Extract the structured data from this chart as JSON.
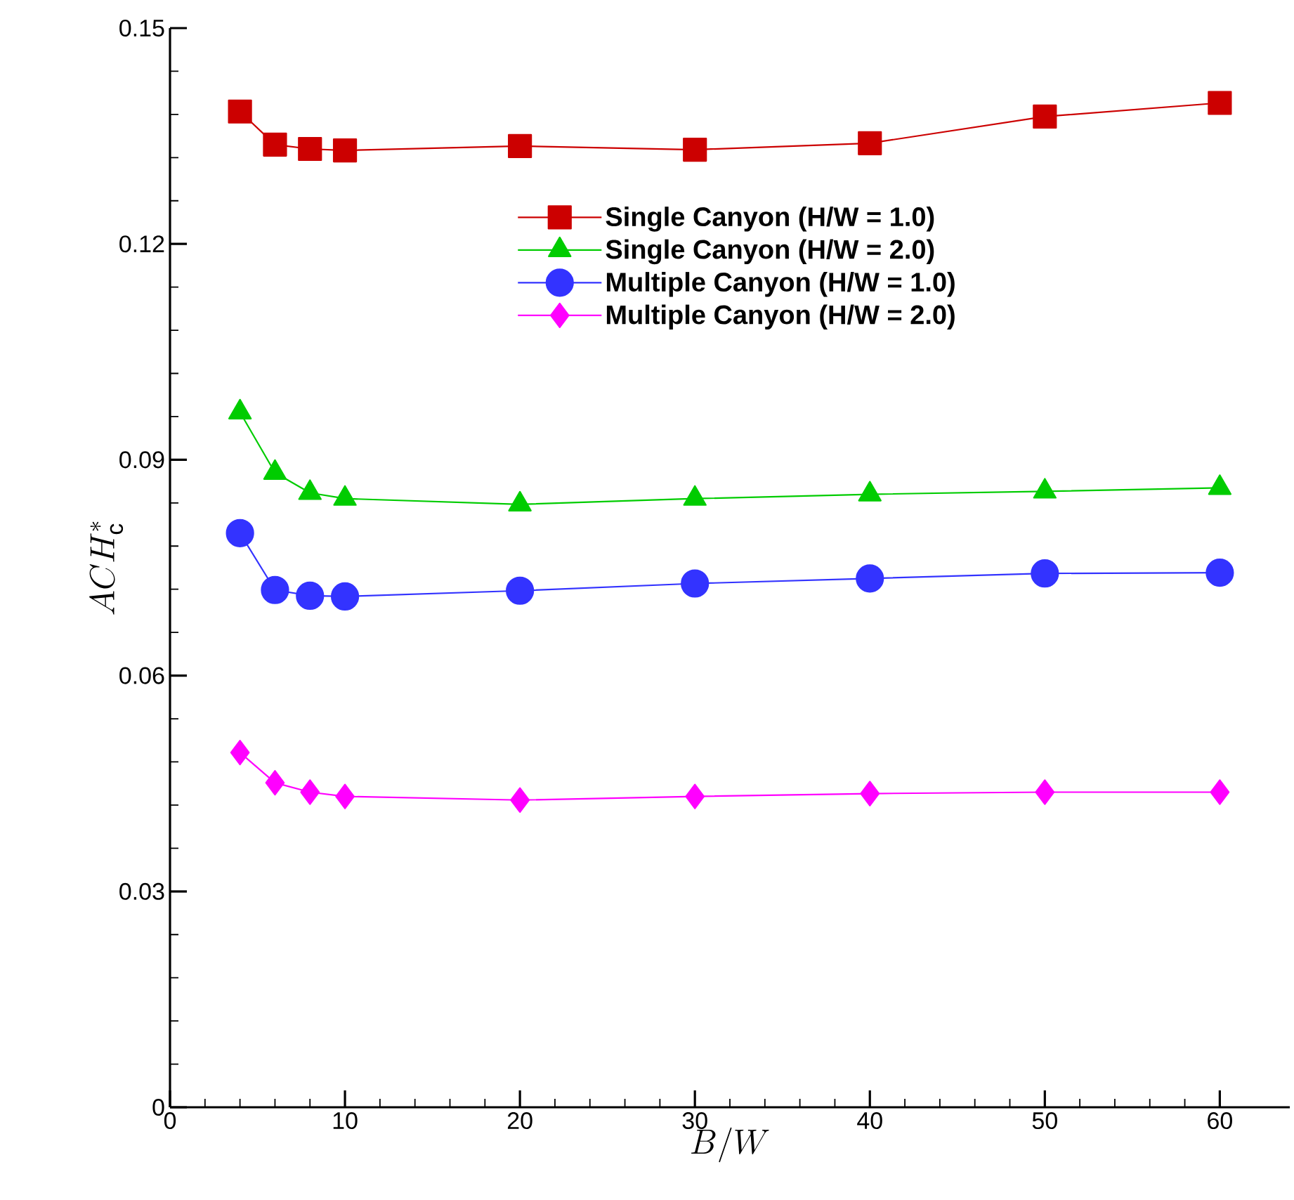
{
  "chart_data": {
    "type": "line",
    "xlabel": "B/W",
    "ylabel": "ACH_{\\mathrm{c}}^{*}",
    "x": [
      4,
      6,
      8,
      10,
      20,
      30,
      40,
      50,
      60
    ],
    "series": [
      {
        "name": "Single Canyon (H/W = 1.0)",
        "color": "#cc0000",
        "marker": "square",
        "values": [
          0.1384,
          0.1338,
          0.1332,
          0.133,
          0.1336,
          0.1331,
          0.134,
          0.1377,
          0.1396
        ]
      },
      {
        "name": "Single Canyon (H/W = 2.0)",
        "color": "#00cc00",
        "marker": "triangle",
        "values": [
          0.0966,
          0.0882,
          0.0854,
          0.0846,
          0.0838,
          0.0846,
          0.0852,
          0.0856,
          0.0861
        ]
      },
      {
        "name": "Multiple Canyon (H/W = 1.0)",
        "color": "#3333ff",
        "marker": "circle",
        "values": [
          0.0798,
          0.0719,
          0.0711,
          0.071,
          0.0718,
          0.0728,
          0.0735,
          0.0742,
          0.0743
        ]
      },
      {
        "name": "Multiple Canyon (H/W = 2.0)",
        "color": "#ff00ff",
        "marker": "diamond",
        "values": [
          0.0493,
          0.0451,
          0.0438,
          0.0432,
          0.0427,
          0.0432,
          0.0436,
          0.0438,
          0.0438
        ]
      }
    ],
    "xlim": [
      0,
      64
    ],
    "ylim": [
      0,
      0.15
    ],
    "xticks": [
      0,
      10,
      20,
      30,
      40,
      50,
      60
    ],
    "yticks": [
      0,
      0.03,
      0.06,
      0.09,
      0.12,
      0.15
    ],
    "grid": false,
    "legend": "top right",
    "line_style": "solid"
  }
}
